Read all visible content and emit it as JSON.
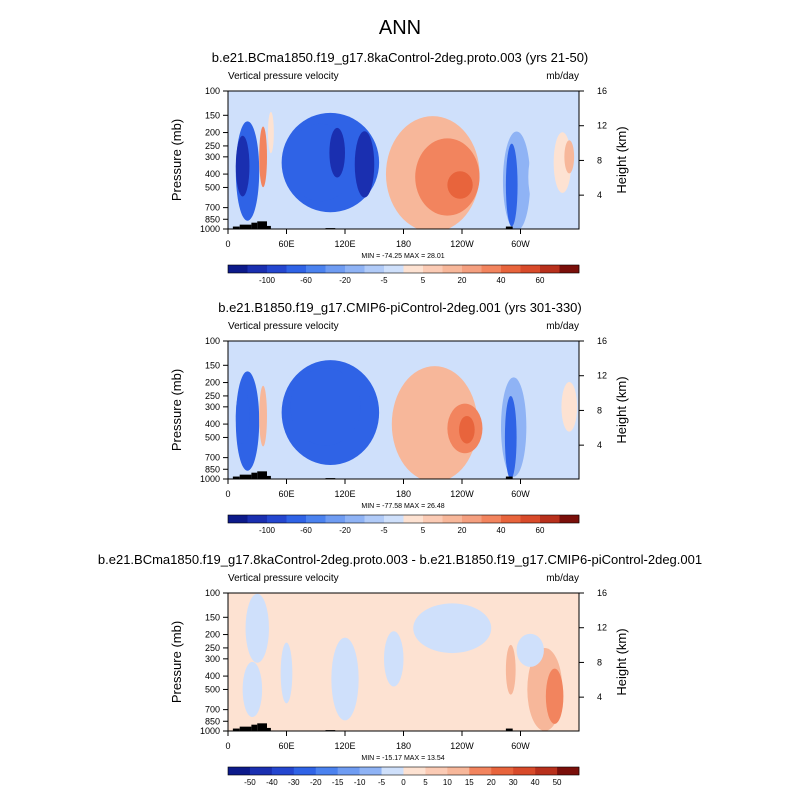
{
  "figure": {
    "title": "ANN"
  },
  "colors": {
    "strong_up": "#1a2fb0",
    "up": "#2f63e6",
    "weak_up": "#8fb3f5",
    "faint_up": "#cfe0fb",
    "faint_down": "#fde2d2",
    "weak_down": "#f7b79a",
    "down": "#f2845e",
    "strong_down": "#e8643c",
    "terrain": "#000000"
  },
  "chart_data": [
    {
      "type": "heatmap",
      "title": "b.e21.BCma1850.f19_g17.8kaControl-2deg.proto.003 (yrs 21-50)",
      "left_string": "Vertical pressure velocity",
      "right_string": "mb/day",
      "xlabel": "",
      "ylabel": "Pressure (mb)",
      "y2label": "Height (km)",
      "x_ticks": [
        "0",
        "60E",
        "120E",
        "180",
        "120W",
        "60W"
      ],
      "x_tick_lon": [
        0,
        60,
        120,
        180,
        240,
        300
      ],
      "xlim": [
        0,
        360
      ],
      "y_ticks": [
        "100",
        "150",
        "200",
        "250",
        "300",
        "400",
        "500",
        "700",
        "850",
        "1000"
      ],
      "y_tick_p": [
        100,
        150,
        200,
        250,
        300,
        400,
        500,
        700,
        850,
        1000
      ],
      "ylim": [
        1000,
        100
      ],
      "y_scale": "log",
      "y2_ticks": [
        "4",
        "8",
        "12",
        "16"
      ],
      "y2_tick_km": [
        4,
        8,
        12,
        16
      ],
      "minmax": "MIN = -74.25  MAX =  28.01",
      "min": -74.25,
      "max": 28.01,
      "colorbar": {
        "labels": [
          "-100",
          "-60",
          "-20",
          "-5",
          "5",
          "20",
          "40",
          "60"
        ],
        "colors": [
          "#0c1a8a",
          "#1a2fb0",
          "#2446cf",
          "#2f63e6",
          "#4b82ef",
          "#6f9cf2",
          "#8fb3f5",
          "#b1cbf8",
          "#cfe0fb",
          "#fde2d2",
          "#fbcbb5",
          "#f7b79a",
          "#f49f7f",
          "#f2845e",
          "#e8643c",
          "#d84a2a",
          "#b8301c",
          "#7a0f0a"
        ]
      }
    },
    {
      "type": "heatmap",
      "title": "b.e21.B1850.f19_g17.CMIP6-piControl-2deg.001 (yrs 301-330)",
      "left_string": "Vertical pressure velocity",
      "right_string": "mb/day",
      "xlabel": "",
      "ylabel": "Pressure (mb)",
      "y2label": "Height (km)",
      "x_ticks": [
        "0",
        "60E",
        "120E",
        "180",
        "120W",
        "60W"
      ],
      "x_tick_lon": [
        0,
        60,
        120,
        180,
        240,
        300
      ],
      "xlim": [
        0,
        360
      ],
      "y_ticks": [
        "100",
        "150",
        "200",
        "250",
        "300",
        "400",
        "500",
        "700",
        "850",
        "1000"
      ],
      "y_tick_p": [
        100,
        150,
        200,
        250,
        300,
        400,
        500,
        700,
        850,
        1000
      ],
      "ylim": [
        1000,
        100
      ],
      "y_scale": "log",
      "y2_ticks": [
        "4",
        "8",
        "12",
        "16"
      ],
      "y2_tick_km": [
        4,
        8,
        12,
        16
      ],
      "minmax": "MIN = -77.58  MAX =  26.48",
      "min": -77.58,
      "max": 26.48,
      "colorbar": {
        "labels": [
          "-100",
          "-60",
          "-20",
          "-5",
          "5",
          "20",
          "40",
          "60"
        ],
        "colors": [
          "#0c1a8a",
          "#1a2fb0",
          "#2446cf",
          "#2f63e6",
          "#4b82ef",
          "#6f9cf2",
          "#8fb3f5",
          "#b1cbf8",
          "#cfe0fb",
          "#fde2d2",
          "#fbcbb5",
          "#f7b79a",
          "#f49f7f",
          "#f2845e",
          "#e8643c",
          "#d84a2a",
          "#b8301c",
          "#7a0f0a"
        ]
      }
    },
    {
      "type": "heatmap",
      "title": "b.e21.BCma1850.f19_g17.8kaControl-2deg.proto.003 - b.e21.B1850.f19_g17.CMIP6-piControl-2deg.001",
      "left_string": "Vertical pressure velocity",
      "right_string": "mb/day",
      "xlabel": "",
      "ylabel": "Pressure (mb)",
      "y2label": "Height (km)",
      "x_ticks": [
        "0",
        "60E",
        "120E",
        "180",
        "120W",
        "60W"
      ],
      "x_tick_lon": [
        0,
        60,
        120,
        180,
        240,
        300
      ],
      "xlim": [
        0,
        360
      ],
      "y_ticks": [
        "100",
        "150",
        "200",
        "250",
        "300",
        "400",
        "500",
        "700",
        "850",
        "1000"
      ],
      "y_tick_p": [
        100,
        150,
        200,
        250,
        300,
        400,
        500,
        700,
        850,
        1000
      ],
      "ylim": [
        1000,
        100
      ],
      "y_scale": "log",
      "y2_ticks": [
        "4",
        "8",
        "12",
        "16"
      ],
      "y2_tick_km": [
        4,
        8,
        12,
        16
      ],
      "minmax": "MIN = -15.17  MAX =  13.54",
      "min": -15.17,
      "max": 13.54,
      "colorbar": {
        "labels": [
          "-50",
          "-40",
          "-30",
          "-20",
          "-15",
          "-10",
          "-5",
          "0",
          "5",
          "10",
          "15",
          "20",
          "30",
          "40",
          "50"
        ],
        "colors": [
          "#0c1a8a",
          "#1a2fb0",
          "#2446cf",
          "#2f63e6",
          "#4b82ef",
          "#6f9cf2",
          "#8fb3f5",
          "#cfe0fb",
          "#fde2d2",
          "#fbcbb5",
          "#f7b79a",
          "#f2845e",
          "#e8643c",
          "#d84a2a",
          "#b8301c",
          "#7a0f0a"
        ]
      }
    }
  ]
}
